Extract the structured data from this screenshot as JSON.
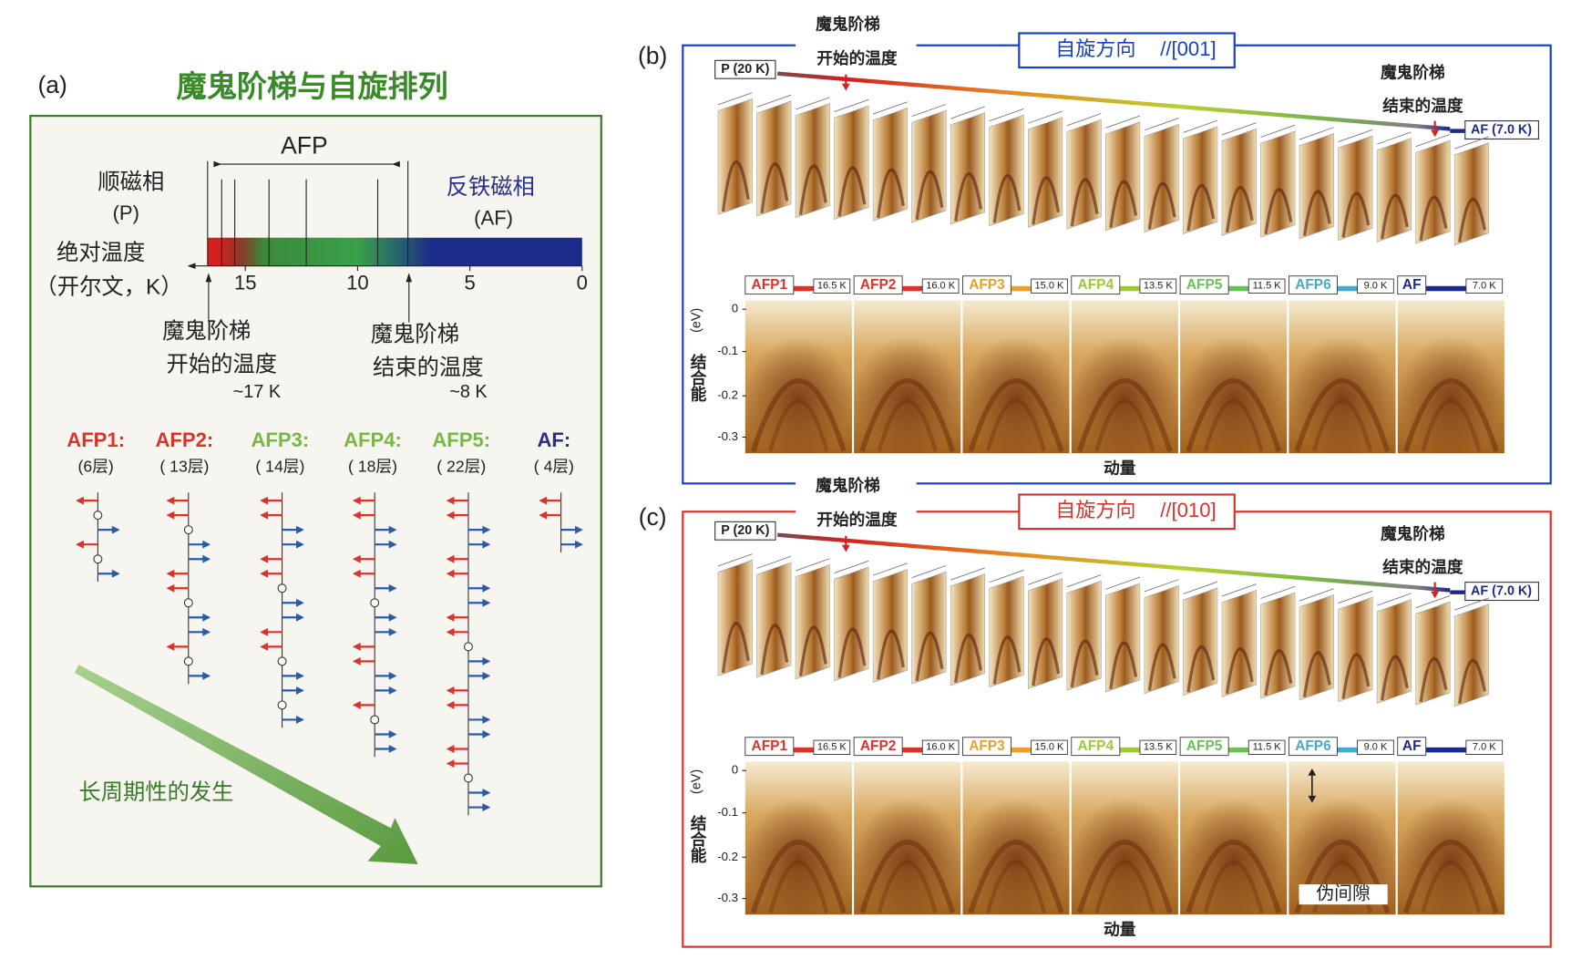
{
  "panel_a": {
    "label": "(a)",
    "title": "魔鬼阶梯与自旋排列",
    "afp": "AFP",
    "para": "顺磁相",
    "para_sym": "(P)",
    "anti": "反铁磁相",
    "anti_sym": "(AF)",
    "temp_label": [
      "绝对温度",
      "（开尔文，K）"
    ],
    "ticks": [
      15,
      10,
      5,
      0
    ],
    "onset": [
      "魔鬼阶梯",
      "开始的温度",
      "~17 K"
    ],
    "end": [
      "魔鬼阶梯",
      "结束的温度",
      "~8 K"
    ],
    "phases": [
      {
        "name": "AFP1:",
        "layers": "(6层)",
        "color": "#d9342b"
      },
      {
        "name": "AFP2:",
        "layers": "( 13层)",
        "color": "#d9342b"
      },
      {
        "name": "AFP3:",
        "layers": "( 14层)",
        "color": "#7ab648"
      },
      {
        "name": "AFP4:",
        "layers": "( 18层)",
        "color": "#7ab648"
      },
      {
        "name": "AFP5:",
        "layers": "( 22层)",
        "color": "#7ab648"
      },
      {
        "name": "AF:",
        "layers": "( 4层)",
        "color": "#2a2f8a"
      }
    ],
    "trend": "长周期性的发生"
  },
  "panel_b": {
    "label": "(b)",
    "onset": [
      "魔鬼阶梯",
      "开始的温度"
    ],
    "direction": "自旋方向",
    "axis": "//[001]",
    "start": "P (20 K)",
    "end_label": [
      "魔鬼阶梯",
      "结束的温度"
    ],
    "final": "AF (7.0 K)",
    "phases": [
      {
        "name": "AFP1",
        "temp": "16.5 K",
        "color": "#d9342b"
      },
      {
        "name": "AFP2",
        "temp": "16.0 K",
        "color": "#d9342b"
      },
      {
        "name": "AFP3",
        "temp": "15.0 K",
        "color": "#e8a030"
      },
      {
        "name": "AFP4",
        "temp": "13.5 K",
        "color": "#9cc83a"
      },
      {
        "name": "AFP5",
        "temp": "11.5 K",
        "color": "#6bbf5a"
      },
      {
        "name": "AFP6",
        "temp": "9.0 K",
        "color": "#4aa8c8"
      },
      {
        "name": "AF",
        "temp": "7.0 K",
        "color": "#1c2a8a"
      }
    ],
    "y_label": "结合能",
    "y_unit": "(eV)",
    "y_ticks": [
      "0",
      "-0.1",
      "-0.2",
      "-0.3"
    ],
    "x_label": "动量",
    "box_color": "#1a3fc8"
  },
  "panel_c": {
    "label": "(c)",
    "onset": [
      "魔鬼阶梯",
      "开始的温度"
    ],
    "direction": "自旋方向",
    "axis": "//[010]",
    "start": "P (20 K)",
    "end_label": [
      "魔鬼阶梯",
      "结束的温度"
    ],
    "final": "AF (7.0 K)",
    "phases": [
      {
        "name": "AFP1",
        "temp": "16.5 K",
        "color": "#d9342b"
      },
      {
        "name": "AFP2",
        "temp": "16.0 K",
        "color": "#d9342b"
      },
      {
        "name": "AFP3",
        "temp": "15.0 K",
        "color": "#e8a030"
      },
      {
        "name": "AFP4",
        "temp": "13.5 K",
        "color": "#9cc83a"
      },
      {
        "name": "AFP5",
        "temp": "11.5 K",
        "color": "#6bbf5a"
      },
      {
        "name": "AFP6",
        "temp": "9.0 K",
        "color": "#4aa8c8"
      },
      {
        "name": "AF",
        "temp": "7.0 K",
        "color": "#1c2a8a"
      }
    ],
    "y_label": "结合能",
    "y_unit": "(eV)",
    "y_ticks": [
      "0",
      "-0.1",
      "-0.2",
      "-0.3"
    ],
    "x_label": "动量",
    "gap": "伪间隙",
    "box_color": "#d9342b"
  }
}
